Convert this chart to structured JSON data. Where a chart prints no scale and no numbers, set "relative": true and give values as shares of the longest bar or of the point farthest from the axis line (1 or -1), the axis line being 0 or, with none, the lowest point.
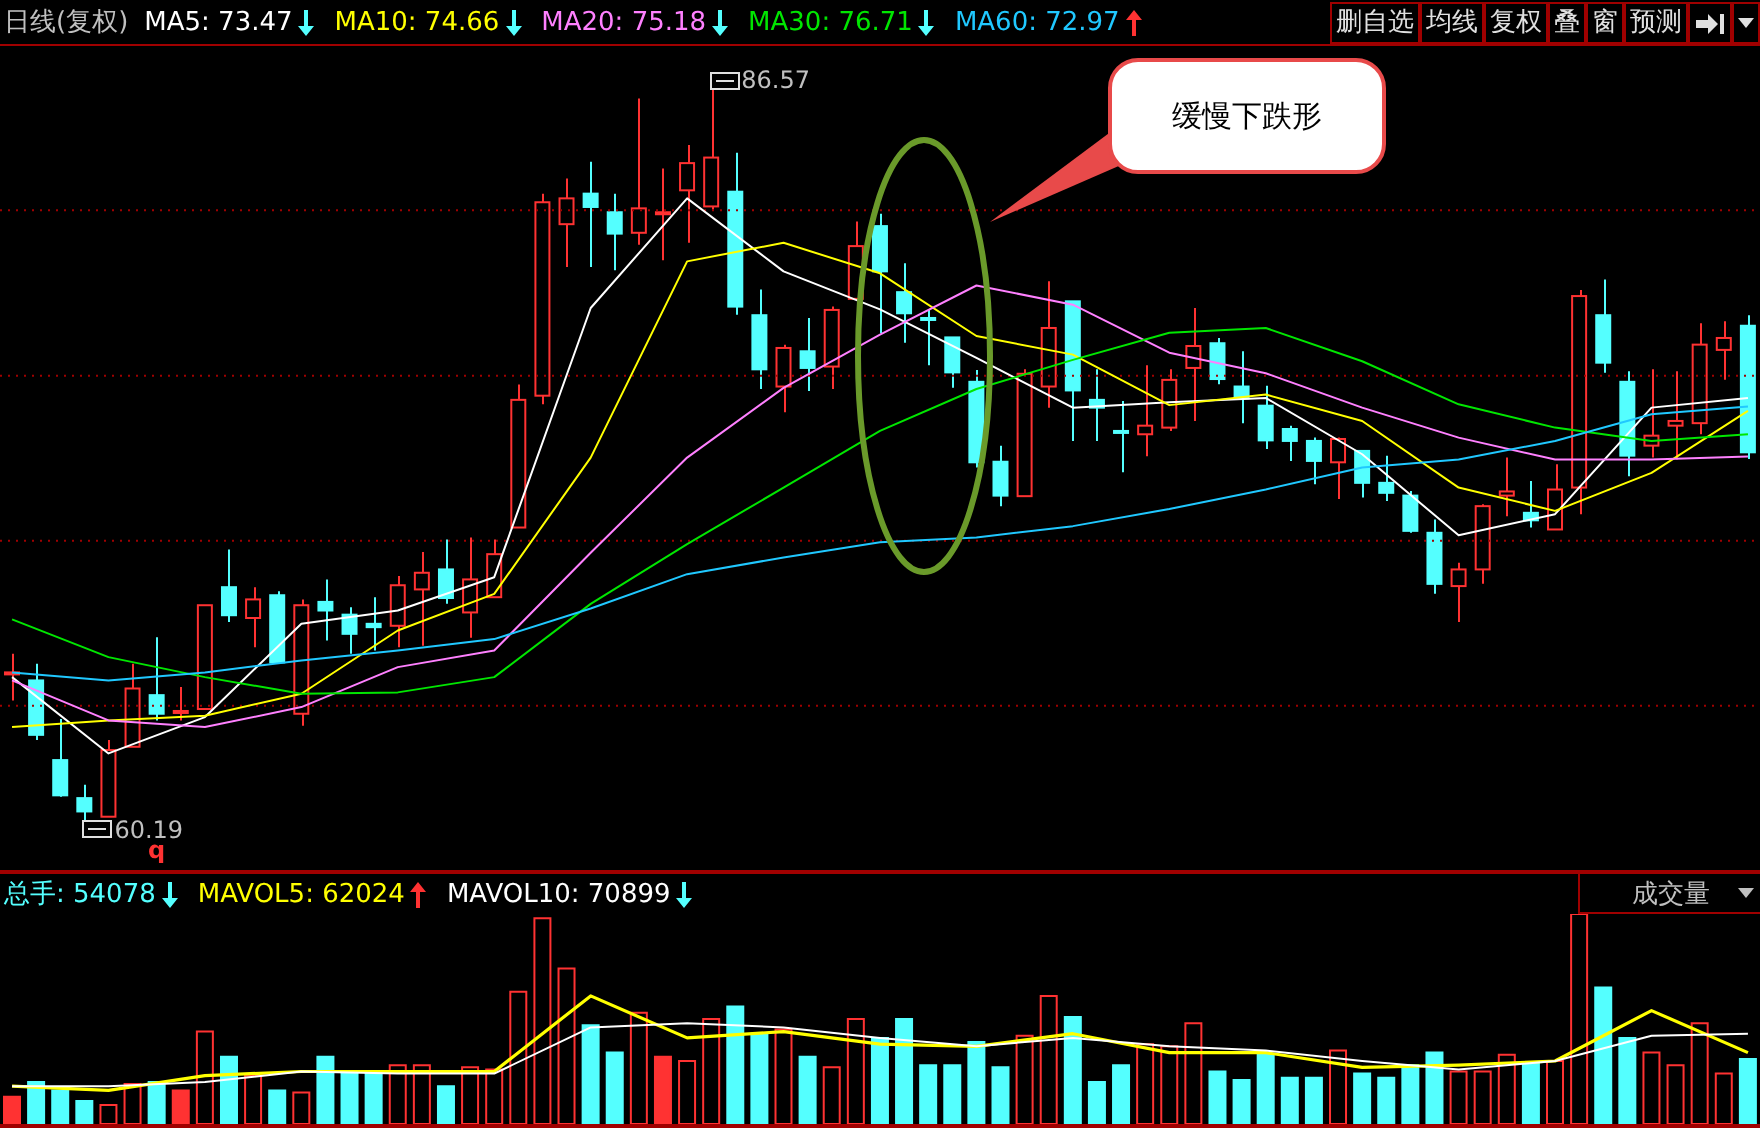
{
  "chart_data": [
    {
      "type": "candlestick",
      "categories": [
        null,
        null,
        null,
        null,
        null,
        null,
        null,
        null,
        null,
        null,
        null,
        null,
        null,
        null,
        null,
        null,
        null,
        null,
        null,
        null,
        null,
        null,
        null,
        null,
        null,
        null,
        null,
        null,
        null,
        null,
        null,
        null,
        null,
        null,
        null,
        null,
        null,
        null,
        null,
        null,
        null,
        null,
        null,
        null,
        null,
        null,
        null,
        null,
        null,
        null,
        null,
        null,
        null,
        null,
        null,
        null,
        null,
        null,
        null,
        null,
        null,
        null,
        null,
        null,
        null,
        null,
        null,
        null,
        null,
        null,
        null,
        null,
        null
      ],
      "ohlc": [
        [
          65.51,
          66.18,
          64.5,
          65.51
        ],
        [
          65.22,
          65.82,
          63.07,
          63.26
        ],
        [
          62.35,
          63.83,
          61.03,
          61.08
        ],
        [
          60.98,
          61.46,
          60.19,
          60.5
        ],
        [
          60.31,
          63.07,
          60.31,
          62.71
        ],
        [
          62.83,
          65.82,
          62.83,
          64.93
        ],
        [
          64.69,
          66.78,
          63.78,
          64.02
        ],
        [
          64.12,
          64.98,
          63.78,
          64.12
        ],
        [
          64.19,
          67.93,
          64.19,
          67.93
        ],
        [
          68.58,
          69.94,
          67.33,
          67.57
        ],
        [
          67.47,
          68.58,
          66.42,
          68.14
        ],
        [
          68.29,
          68.43,
          65.82,
          65.87
        ],
        [
          64.02,
          68.14,
          63.59,
          67.93
        ],
        [
          68.05,
          68.86,
          66.66,
          67.74
        ],
        [
          67.59,
          67.86,
          66.18,
          66.9
        ],
        [
          67.26,
          68.22,
          66.3,
          67.14
        ],
        [
          67.19,
          68.98,
          66.42,
          68.65
        ],
        [
          68.5,
          69.85,
          66.47,
          69.1
        ],
        [
          69.22,
          70.3,
          67.98,
          68.19
        ],
        [
          67.67,
          70.37,
          66.76,
          68.86
        ],
        [
          68.22,
          70.3,
          68.22,
          69.77
        ],
        [
          70.73,
          75.88,
          70.73,
          75.33
        ],
        [
          75.48,
          82.76,
          75.17,
          82.45
        ],
        [
          81.66,
          83.31,
          80.12,
          82.59
        ],
        [
          82.76,
          83.91,
          80.12,
          82.28
        ],
        [
          82.09,
          82.76,
          80.0,
          81.32
        ],
        [
          81.35,
          86.19,
          80.92,
          82.23
        ],
        [
          82.09,
          83.67,
          80.36,
          82.09
        ],
        [
          82.88,
          84.51,
          80.99,
          83.86
        ],
        [
          82.3,
          86.57,
          82.19,
          84.06
        ],
        [
          82.83,
          84.23,
          78.4,
          78.69
        ],
        [
          78.38,
          79.31,
          75.72,
          76.43
        ],
        [
          75.81,
          77.32,
          74.88,
          77.2
        ],
        [
          77.08,
          78.28,
          75.65,
          76.48
        ],
        [
          76.53,
          78.69,
          75.72,
          78.57
        ],
        [
          78.97,
          81.76,
          78.97,
          80.87
        ],
        [
          81.59,
          82.04,
          77.73,
          79.96
        ],
        [
          79.21,
          80.25,
          77.39,
          78.45
        ],
        [
          78.28,
          78.59,
          76.58,
          78.28
        ],
        [
          77.58,
          77.58,
          75.77,
          76.32
        ],
        [
          75.98,
          76.41,
          72.89,
          73.08
        ],
        [
          73.1,
          73.68,
          71.5,
          71.88
        ],
        [
          71.86,
          76.43,
          71.86,
          76.27
        ],
        [
          75.81,
          79.6,
          75.05,
          77.92
        ],
        [
          78.88,
          78.88,
          73.85,
          75.67
        ],
        [
          75.33,
          76.43,
          73.85,
          75.05
        ],
        [
          74.21,
          75.29,
          72.72,
          74.21
        ],
        [
          74.09,
          76.58,
          73.3,
          74.4
        ],
        [
          74.33,
          76.43,
          74.21,
          76.05
        ],
        [
          76.48,
          78.64,
          74.57,
          77.27
        ],
        [
          77.37,
          77.56,
          75.89,
          76.08
        ],
        [
          75.81,
          77.08,
          74.49,
          75.38
        ],
        [
          75.12,
          75.84,
          73.56,
          73.87
        ],
        [
          74.28,
          74.4,
          73.13,
          73.85
        ],
        [
          73.85,
          73.97,
          72.29,
          73.13
        ],
        [
          73.08,
          73.97,
          71.76,
          73.92
        ],
        [
          73.49,
          73.49,
          71.81,
          72.34
        ],
        [
          72.34,
          73.32,
          71.69,
          71.98
        ],
        [
          71.88,
          72.05,
          70.54,
          70.61
        ],
        [
          70.54,
          71.02,
          68.34,
          68.7
        ],
        [
          68.62,
          69.46,
          67.33,
          69.22
        ],
        [
          69.22,
          71.57,
          68.7,
          71.5
        ],
        [
          71.88,
          73.25,
          71.14,
          72.03
        ],
        [
          71.26,
          72.41,
          70.73,
          70.99
        ],
        [
          70.66,
          73.01,
          70.66,
          72.1
        ],
        [
          72.17,
          79.29,
          71.21,
          79.07
        ],
        [
          78.38,
          79.67,
          76.31,
          76.67
        ],
        [
          75.98,
          76.36,
          72.58,
          73.32
        ],
        [
          73.68,
          76.43,
          73.25,
          74.04
        ],
        [
          74.4,
          76.36,
          73.18,
          74.57
        ],
        [
          74.49,
          78.09,
          74.09,
          77.32
        ],
        [
          77.13,
          78.16,
          76.05,
          77.56
        ],
        [
          78.0,
          78.38,
          73.2,
          73.44
        ]
      ],
      "colors": [
        "#ff3232",
        "#54ffff",
        "#54ffff",
        "#54ffff",
        "#ff3232",
        "#ff3232",
        "#54ffff",
        "#ff3232",
        "#ff3232",
        "#54ffff",
        "#ff3232",
        "#54ffff",
        "#ff3232",
        "#54ffff",
        "#54ffff",
        "#54ffff",
        "#ff3232",
        "#ff3232",
        "#54ffff",
        "#ff3232",
        "#ff3232",
        "#ff3232",
        "#ff3232",
        "#ff3232",
        "#54ffff",
        "#54ffff",
        "#ff3232",
        "#ff3232",
        "#ff3232",
        "#ff3232",
        "#54ffff",
        "#54ffff",
        "#ff3232",
        "#54ffff",
        "#ff3232",
        "#ff3232",
        "#54ffff",
        "#54ffff",
        "#54ffff",
        "#54ffff",
        "#54ffff",
        "#54ffff",
        "#ff3232",
        "#ff3232",
        "#54ffff",
        "#54ffff",
        "#54ffff",
        "#ff3232",
        "#ff3232",
        "#ff3232",
        "#54ffff",
        "#54ffff",
        "#54ffff",
        "#54ffff",
        "#54ffff",
        "#ff3232",
        "#54ffff",
        "#54ffff",
        "#54ffff",
        "#54ffff",
        "#ff3232",
        "#ff3232",
        "#ff3232",
        "#54ffff",
        "#ff3232",
        "#ff3232",
        "#54ffff",
        "#54ffff",
        "#ff3232",
        "#ff3232",
        "#ff3232",
        "#ff3232",
        "#54ffff"
      ],
      "series": [
        {
          "type": "line",
          "color": "#ffffff",
          "values": [
            65.34,
            null,
            null,
            null,
            62.59,
            null,
            null,
            null,
            63.9,
            null,
            null,
            null,
            67.26,
            null,
            null,
            null,
            67.74,
            null,
            null,
            null,
            68.94,
            null,
            null,
            null,
            78.64,
            null,
            null,
            null,
            82.59,
            null,
            null,
            null,
            79.96,
            null,
            null,
            null,
            78.59,
            null,
            null,
            null,
            76.84,
            null,
            null,
            null,
            75.05,
            null,
            null,
            null,
            75.24,
            null,
            null,
            null,
            75.4,
            null,
            null,
            null,
            73.37,
            null,
            null,
            null,
            70.45,
            null,
            null,
            null,
            71.21,
            null,
            null,
            null,
            75.05,
            null,
            null,
            null,
            75.4
          ]
        },
        {
          "type": "line",
          "color": "#ffff00",
          "values": [
            63.54,
            null,
            null,
            null,
            63.78,
            null,
            null,
            null,
            63.95,
            null,
            null,
            null,
            64.74,
            null,
            null,
            null,
            67.02,
            null,
            null,
            null,
            68.34,
            null,
            null,
            null,
            73.25,
            null,
            null,
            null,
            80.32,
            null,
            null,
            null,
            80.99,
            null,
            null,
            null,
            79.89,
            null,
            null,
            null,
            77.63,
            null,
            null,
            null,
            76.96,
            null,
            null,
            null,
            75.14,
            null,
            null,
            null,
            75.52,
            null,
            null,
            null,
            74.57,
            null,
            null,
            null,
            72.17,
            null,
            null,
            null,
            71.33,
            null,
            null,
            null,
            72.7,
            null,
            null,
            null,
            74.93
          ]
        },
        {
          "type": "line",
          "color": "#ff80ff",
          "values": [
            65.22,
            null,
            null,
            null,
            63.78,
            null,
            null,
            null,
            63.54,
            null,
            null,
            null,
            64.26,
            null,
            null,
            null,
            65.7,
            null,
            null,
            null,
            66.3,
            null,
            null,
            null,
            69.82,
            null,
            null,
            null,
            73.25,
            null,
            null,
            null,
            75.76,
            null,
            null,
            null,
            77.68,
            null,
            null,
            null,
            79.45,
            null,
            null,
            null,
            78.76,
            null,
            null,
            null,
            77.03,
            null,
            null,
            null,
            76.29,
            null,
            null,
            null,
            75.05,
            null,
            null,
            null,
            73.97,
            null,
            null,
            null,
            73.18,
            null,
            null,
            null,
            73.18,
            null,
            null,
            null,
            73.29
          ]
        },
        {
          "type": "line",
          "color": "#00e600",
          "values": [
            67.42,
            null,
            null,
            null,
            66.06,
            null,
            null,
            null,
            65.34,
            null,
            null,
            null,
            64.74,
            null,
            null,
            null,
            64.79,
            null,
            null,
            null,
            65.34,
            null,
            null,
            null,
            67.98,
            null,
            null,
            null,
            70.13,
            null,
            null,
            null,
            72.17,
            null,
            null,
            null,
            74.21,
            null,
            null,
            null,
            75.72,
            null,
            null,
            null,
            76.77,
            null,
            null,
            null,
            77.75,
            null,
            null,
            null,
            77.92,
            null,
            null,
            null,
            76.72,
            null,
            null,
            null,
            75.17,
            null,
            null,
            null,
            74.33,
            null,
            null,
            null,
            73.85,
            null,
            null,
            null,
            74.09
          ]
        },
        {
          "type": "line",
          "color": "#20c8ff",
          "values": [
            65.51,
            null,
            null,
            null,
            65.22,
            null,
            null,
            null,
            65.51,
            null,
            null,
            null,
            65.94,
            null,
            null,
            null,
            66.3,
            null,
            null,
            null,
            66.71,
            null,
            null,
            null,
            67.81,
            null,
            null,
            null,
            69.05,
            null,
            null,
            null,
            69.65,
            null,
            null,
            null,
            70.2,
            null,
            null,
            null,
            70.37,
            null,
            null,
            null,
            70.78,
            null,
            null,
            null,
            71.4,
            null,
            null,
            null,
            72.1,
            null,
            null,
            null,
            72.89,
            null,
            null,
            null,
            73.18,
            null,
            null,
            null,
            73.85,
            null,
            null,
            null,
            74.81,
            null,
            null,
            null,
            75.09
          ]
        }
      ],
      "ylim": [
        58.39,
        88.08
      ],
      "yticks": [
        {
          "value": 64.31,
          "label": null
        },
        {
          "value": 70.25,
          "label": null
        },
        {
          "value": 76.2,
          "label": null
        },
        {
          "value": 82.16,
          "label": null
        }
      ],
      "grid": "y",
      "tick_labels": false,
      "annotations": [
        "日线(复权)",
        "MA5: 73.47",
        "MA10: 74.66",
        "MA20: 75.18",
        "MA30: 76.71",
        "MA60: 72.97",
        "删自选",
        "均线",
        "复权",
        "叠",
        "窗",
        "预测",
        "86.57",
        "60.19",
        "q",
        "缓慢下跌形"
      ]
    },
    {
      "type": "bar",
      "relative": true,
      "categories": [
        null,
        null,
        null,
        null,
        null,
        null,
        null,
        null,
        null,
        null,
        null,
        null,
        null,
        null,
        null,
        null,
        null,
        null,
        null,
        null,
        null,
        null,
        null,
        null,
        null,
        null,
        null,
        null,
        null,
        null,
        null,
        null,
        null,
        null,
        null,
        null,
        null,
        null,
        null,
        null,
        null,
        null,
        null,
        null,
        null,
        null,
        null,
        null,
        null,
        null,
        null,
        null,
        null,
        null,
        null,
        null,
        null,
        null,
        null,
        null,
        null,
        null,
        null,
        null,
        null,
        null,
        null,
        null,
        null,
        null,
        null,
        null,
        null
      ],
      "values": [
        0.13,
        0.2,
        0.16,
        0.11,
        0.09,
        0.19,
        0.2,
        0.16,
        0.44,
        0.32,
        0.23,
        0.16,
        0.15,
        0.32,
        0.24,
        0.25,
        0.28,
        0.28,
        0.18,
        0.27,
        0.26,
        0.63,
        0.98,
        0.74,
        0.47,
        0.34,
        0.53,
        0.32,
        0.3,
        0.5,
        0.56,
        0.43,
        0.45,
        0.32,
        0.27,
        0.5,
        0.41,
        0.5,
        0.28,
        0.28,
        0.39,
        0.27,
        0.42,
        0.61,
        0.51,
        0.2,
        0.28,
        0.38,
        0.37,
        0.48,
        0.25,
        0.21,
        0.33,
        0.22,
        0.22,
        0.35,
        0.24,
        0.22,
        0.28,
        0.34,
        0.25,
        0.25,
        0.33,
        0.29,
        0.3,
        1,
        0.65,
        0.41,
        0.34,
        0.28,
        0.48,
        0.24,
        0.31
      ],
      "colors": [
        "#ff3232",
        "#54ffff",
        "#54ffff",
        "#54ffff",
        "#ff3232",
        "#ff3232",
        "#54ffff",
        "#ff3232",
        "#ff3232",
        "#54ffff",
        "#ff3232",
        "#54ffff",
        "#ff3232",
        "#54ffff",
        "#54ffff",
        "#54ffff",
        "#ff3232",
        "#ff3232",
        "#54ffff",
        "#ff3232",
        "#ff3232",
        "#ff3232",
        "#ff3232",
        "#ff3232",
        "#54ffff",
        "#54ffff",
        "#ff3232",
        "#ff3232",
        "#ff3232",
        "#ff3232",
        "#54ffff",
        "#54ffff",
        "#ff3232",
        "#54ffff",
        "#ff3232",
        "#ff3232",
        "#54ffff",
        "#54ffff",
        "#54ffff",
        "#54ffff",
        "#54ffff",
        "#54ffff",
        "#ff3232",
        "#ff3232",
        "#54ffff",
        "#54ffff",
        "#54ffff",
        "#ff3232",
        "#ff3232",
        "#ff3232",
        "#54ffff",
        "#54ffff",
        "#54ffff",
        "#54ffff",
        "#54ffff",
        "#ff3232",
        "#54ffff",
        "#54ffff",
        "#54ffff",
        "#54ffff",
        "#ff3232",
        "#ff3232",
        "#ff3232",
        "#54ffff",
        "#ff3232",
        "#ff3232",
        "#54ffff",
        "#54ffff",
        "#ff3232",
        "#ff3232",
        "#ff3232",
        "#ff3232",
        "#54ffff"
      ],
      "series": [
        {
          "type": "line",
          "color": "#ffff00",
          "values": [
            0.18,
            null,
            null,
            null,
            0.16,
            null,
            null,
            null,
            0.23,
            null,
            null,
            null,
            0.25,
            null,
            null,
            null,
            0.25,
            null,
            null,
            null,
            0.25,
            null,
            null,
            null,
            0.61,
            null,
            null,
            null,
            0.41,
            null,
            null,
            null,
            0.44,
            null,
            null,
            null,
            0.38,
            null,
            null,
            null,
            0.37,
            null,
            null,
            null,
            0.43,
            null,
            null,
            null,
            0.34,
            null,
            null,
            null,
            0.34,
            null,
            null,
            null,
            0.27,
            null,
            null,
            null,
            0.28,
            null,
            null,
            null,
            0.3,
            null,
            null,
            null,
            0.54,
            null,
            null,
            null,
            0.34
          ]
        },
        {
          "type": "line",
          "color": "#ffffff",
          "values": [
            0.18,
            null,
            null,
            null,
            0.18,
            null,
            null,
            null,
            0.2,
            null,
            null,
            null,
            0.25,
            null,
            null,
            null,
            0.24,
            null,
            null,
            null,
            0.24,
            null,
            null,
            null,
            0.46,
            null,
            null,
            null,
            0.48,
            null,
            null,
            null,
            0.46,
            null,
            null,
            null,
            0.41,
            null,
            null,
            null,
            0.37,
            null,
            null,
            null,
            0.41,
            null,
            null,
            null,
            0.37,
            null,
            null,
            null,
            0.35,
            null,
            null,
            null,
            0.3,
            null,
            null,
            null,
            0.26,
            null,
            null,
            null,
            0.3,
            null,
            null,
            null,
            0.42,
            null,
            null,
            null,
            0.43
          ]
        }
      ],
      "tick_labels": false,
      "annotations": [
        "总手: 54078",
        "MAVOL5: 62024",
        "MAVOL10: 70899",
        "成交量"
      ]
    }
  ]
}
